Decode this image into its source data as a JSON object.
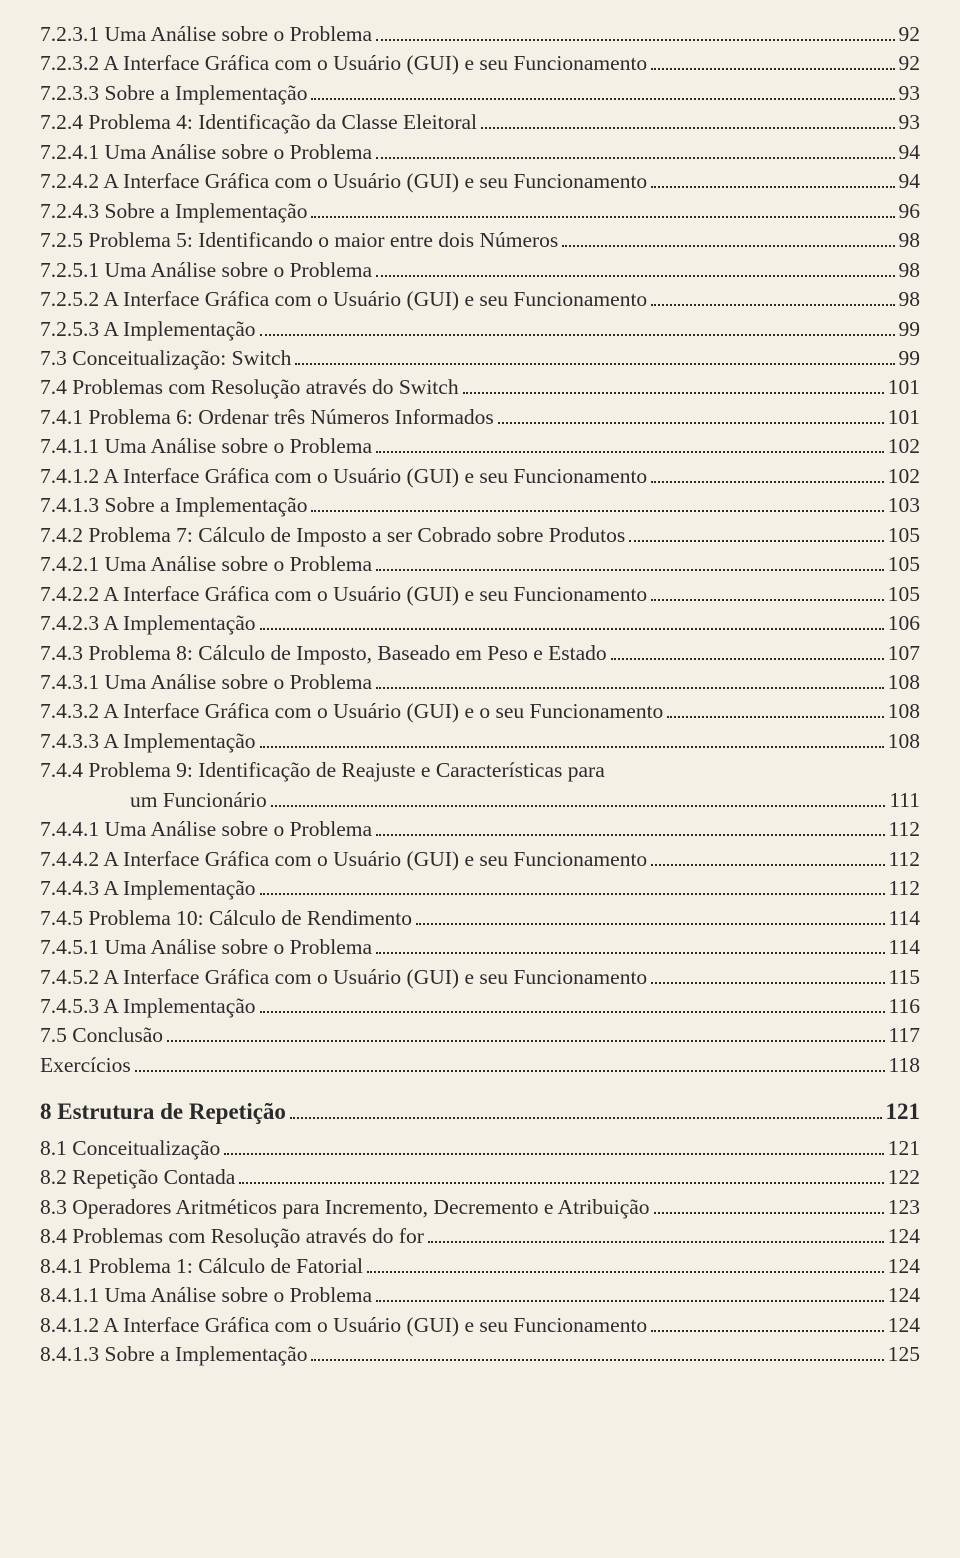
{
  "toc": [
    {
      "label": "7.2.3.1 Uma Análise sobre o Problema",
      "page": "92",
      "bold": false,
      "indent": 0
    },
    {
      "label": "7.2.3.2 A Interface Gráfica com o Usuário (GUI) e seu Funcionamento",
      "page": "92",
      "bold": false,
      "indent": 0
    },
    {
      "label": "7.2.3.3 Sobre a Implementação",
      "page": "93",
      "bold": false,
      "indent": 0
    },
    {
      "label": "7.2.4 Problema 4: Identificação da Classe Eleitoral",
      "page": "93",
      "bold": false,
      "indent": 0
    },
    {
      "label": "7.2.4.1 Uma Análise sobre o Problema",
      "page": "94",
      "bold": false,
      "indent": 0
    },
    {
      "label": "7.2.4.2 A Interface Gráfica com o Usuário (GUI) e seu Funcionamento",
      "page": "94",
      "bold": false,
      "indent": 0
    },
    {
      "label": "7.2.4.3 Sobre a Implementação",
      "page": "96",
      "bold": false,
      "indent": 0
    },
    {
      "label": "7.2.5 Problema 5: Identificando o maior entre dois Números",
      "page": "98",
      "bold": false,
      "indent": 0
    },
    {
      "label": "7.2.5.1 Uma Análise sobre o Problema",
      "page": "98",
      "bold": false,
      "indent": 0
    },
    {
      "label": "7.2.5.2 A Interface Gráfica com o Usuário (GUI) e seu Funcionamento",
      "page": "98",
      "bold": false,
      "indent": 0
    },
    {
      "label": "7.2.5.3 A Implementação",
      "page": "99",
      "bold": false,
      "indent": 0
    },
    {
      "label": "7.3 Conceitualização: Switch",
      "page": "99",
      "bold": false,
      "indent": 0
    },
    {
      "label": "7.4 Problemas com Resolução através do Switch",
      "page": "101",
      "bold": false,
      "indent": 0
    },
    {
      "label": "7.4.1 Problema 6: Ordenar três Números Informados",
      "page": "101",
      "bold": false,
      "indent": 0
    },
    {
      "label": "7.4.1.1 Uma Análise sobre o Problema",
      "page": "102",
      "bold": false,
      "indent": 0
    },
    {
      "label": "7.4.1.2 A Interface Gráfica com o Usuário (GUI) e seu Funcionamento",
      "page": "102",
      "bold": false,
      "indent": 0
    },
    {
      "label": "7.4.1.3 Sobre a Implementação",
      "page": "103",
      "bold": false,
      "indent": 0
    },
    {
      "label": "7.4.2 Problema 7: Cálculo de Imposto a ser Cobrado sobre Produtos",
      "page": "105",
      "bold": false,
      "indent": 0
    },
    {
      "label": "7.4.2.1 Uma Análise sobre o Problema",
      "page": "105",
      "bold": false,
      "indent": 0
    },
    {
      "label": "7.4.2.2 A Interface Gráfica com o Usuário (GUI) e seu Funcionamento",
      "page": "105",
      "bold": false,
      "indent": 0
    },
    {
      "label": "7.4.2.3 A Implementação",
      "page": "106",
      "bold": false,
      "indent": 0
    },
    {
      "label": "7.4.3 Problema 8: Cálculo de Imposto, Baseado em Peso e Estado",
      "page": "107",
      "bold": false,
      "indent": 0
    },
    {
      "label": "7.4.3.1 Uma Análise sobre o Problema",
      "page": "108",
      "bold": false,
      "indent": 0
    },
    {
      "label": "7.4.3.2 A Interface Gráfica com o Usuário (GUI) e o seu Funcionamento",
      "page": "108",
      "bold": false,
      "indent": 0
    },
    {
      "label": "7.4.3.3 A Implementação",
      "page": "108",
      "bold": false,
      "indent": 0
    },
    {
      "label": "7.4.4 Problema 9: Identificação de Reajuste e Características para",
      "page": "",
      "bold": false,
      "indent": 0,
      "no_page": true,
      "no_dots": true
    },
    {
      "label": "um Funcionário",
      "page": "111",
      "bold": false,
      "indent": 1
    },
    {
      "label": "7.4.4.1 Uma Análise sobre o Problema",
      "page": "112",
      "bold": false,
      "indent": 0
    },
    {
      "label": "7.4.4.2 A Interface Gráfica com o Usuário (GUI) e seu Funcionamento",
      "page": "112",
      "bold": false,
      "indent": 0
    },
    {
      "label": "7.4.4.3 A Implementação",
      "page": "112",
      "bold": false,
      "indent": 0
    },
    {
      "label": "7.4.5 Problema 10: Cálculo de Rendimento",
      "page": "114",
      "bold": false,
      "indent": 0
    },
    {
      "label": "7.4.5.1 Uma Análise sobre o Problema",
      "page": "114",
      "bold": false,
      "indent": 0
    },
    {
      "label": "7.4.5.2 A Interface Gráfica com o Usuário (GUI) e seu Funcionamento",
      "page": "115",
      "bold": false,
      "indent": 0
    },
    {
      "label": "7.4.5.3 A Implementação",
      "page": "116",
      "bold": false,
      "indent": 0
    },
    {
      "label": "7.5 Conclusão",
      "page": "117",
      "bold": false,
      "indent": 0
    },
    {
      "label": "Exercícios",
      "page": "118",
      "bold": false,
      "indent": 0
    },
    {
      "gap": true
    },
    {
      "label": "8  Estrutura  de  Repetição",
      "page": "121",
      "bold": true,
      "indent": 0
    },
    {
      "gap_small": true
    },
    {
      "label": "8.1 Conceitualização",
      "page": "121",
      "bold": false,
      "indent": 0
    },
    {
      "label": "8.2 Repetição Contada",
      "page": "122",
      "bold": false,
      "indent": 0
    },
    {
      "label": "8.3 Operadores Aritméticos para Incremento, Decremento e Atribuição",
      "page": "123",
      "bold": false,
      "indent": 0
    },
    {
      "label": "8.4 Problemas com Resolução através do for",
      "page": "124",
      "bold": false,
      "indent": 0
    },
    {
      "label": "8.4.1 Problema 1: Cálculo de Fatorial",
      "page": "124",
      "bold": false,
      "indent": 0
    },
    {
      "label": "8.4.1.1 Uma Análise sobre o Problema",
      "page": "124",
      "bold": false,
      "indent": 0
    },
    {
      "label": "8.4.1.2 A Interface Gráfica com o Usuário (GUI) e seu Funcionamento",
      "page": "124",
      "bold": false,
      "indent": 0
    },
    {
      "label": "8.4.1.3 Sobre a Implementação",
      "page": "125",
      "bold": false,
      "indent": 0
    }
  ]
}
